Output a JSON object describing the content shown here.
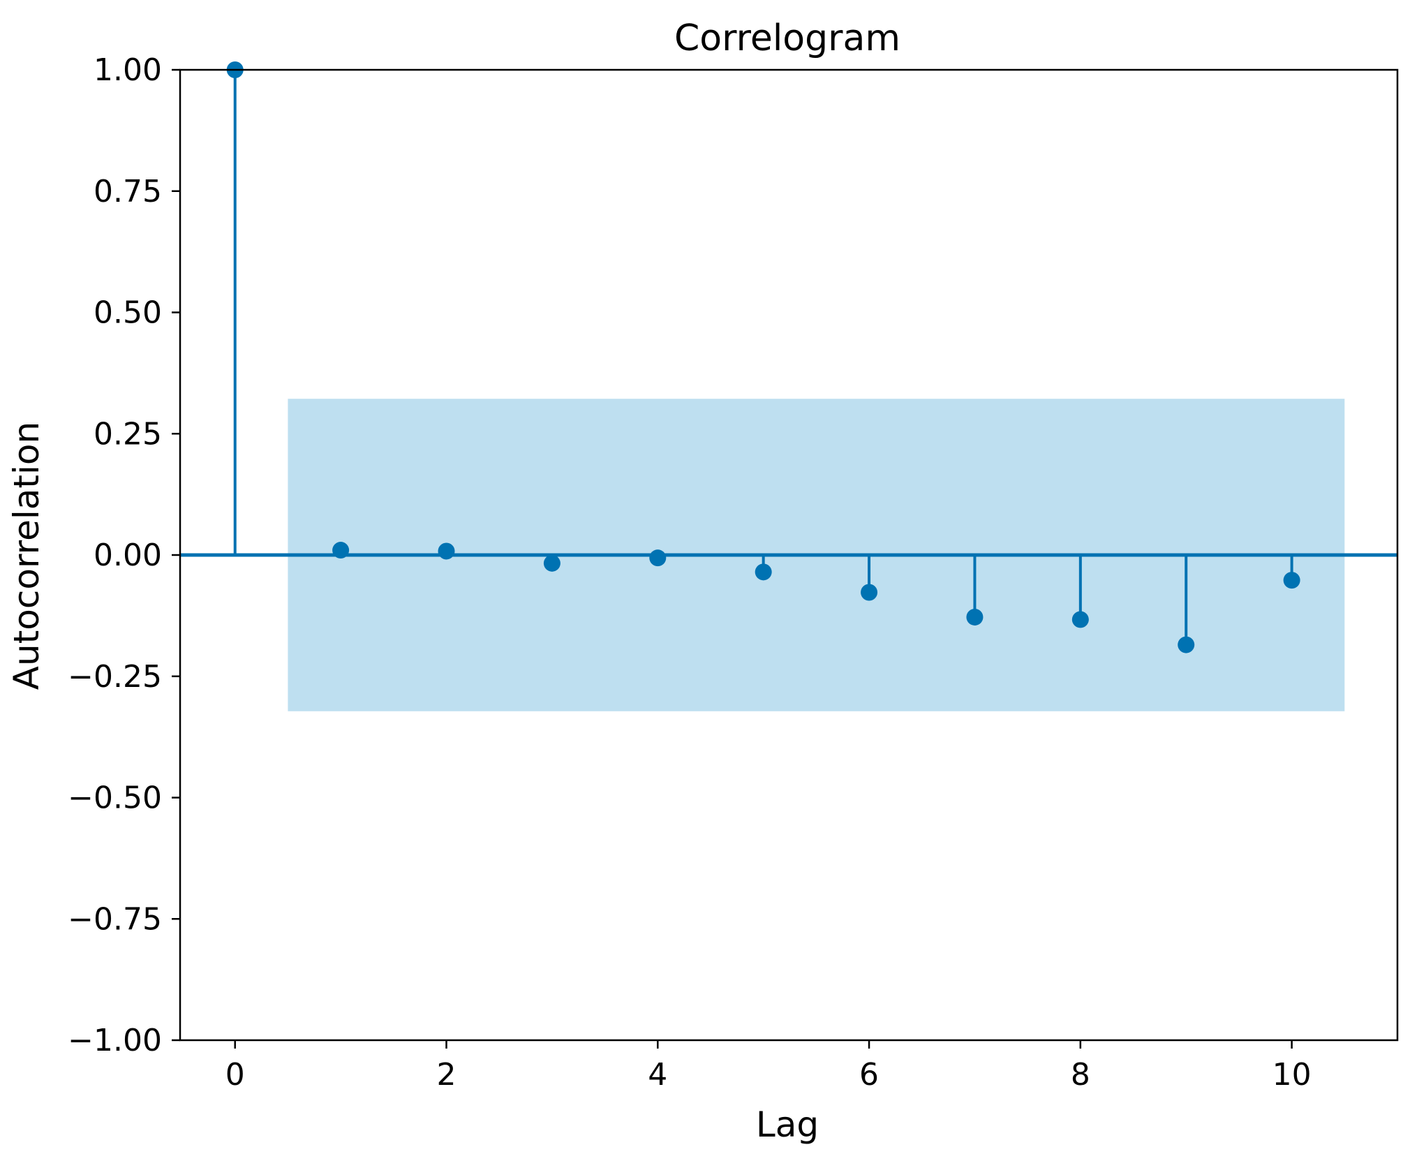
{
  "chart_data": {
    "type": "stem",
    "title": "Correlogram",
    "xlabel": "Lag",
    "ylabel": "Autocorrelation",
    "x": [
      0,
      1,
      2,
      3,
      4,
      5,
      6,
      7,
      8,
      9,
      10
    ],
    "values": [
      1.0,
      0.01,
      0.008,
      -0.017,
      -0.006,
      -0.035,
      -0.077,
      -0.128,
      -0.133,
      -0.185,
      -0.052
    ],
    "confidence_band": {
      "x_range": [
        0.5,
        10.5
      ],
      "lower": -0.322,
      "upper": 0.322
    },
    "xlim": [
      -0.52,
      11.0
    ],
    "ylim": [
      -1.0,
      1.0
    ],
    "xticks": [
      0,
      2,
      4,
      6,
      8,
      10
    ],
    "xtick_labels": [
      "0",
      "2",
      "4",
      "6",
      "8",
      "10"
    ],
    "yticks": [
      1.0,
      0.75,
      0.5,
      0.25,
      0.0,
      -0.25,
      -0.5,
      -0.75,
      -1.0
    ],
    "ytick_labels": [
      "1.00",
      "0.75",
      "0.50",
      "0.25",
      "0.00",
      "−0.25",
      "−0.50",
      "−0.75",
      "−1.00"
    ],
    "grid": false,
    "colors": {
      "stem": "#0072b2",
      "band": "#bedff0",
      "axes": "#000000"
    }
  }
}
